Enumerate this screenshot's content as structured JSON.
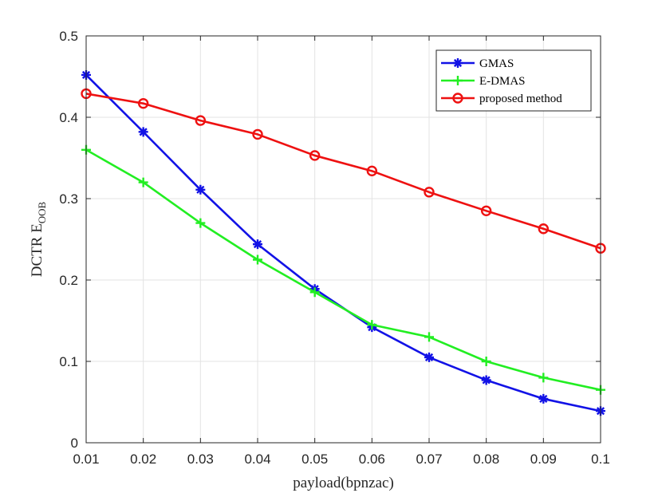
{
  "chart_data": {
    "type": "line",
    "xlabel": "payload(bpnzac)",
    "ylabel_main": "DCTR E",
    "ylabel_sub": "OOB",
    "x": [
      0.01,
      0.02,
      0.03,
      0.04,
      0.05,
      0.06,
      0.07,
      0.08,
      0.09,
      0.1
    ],
    "x_tick_labels": [
      "0.01",
      "0.02",
      "0.03",
      "0.04",
      "0.05",
      "0.06",
      "0.07",
      "0.08",
      "0.09",
      "0.1"
    ],
    "y_tick_values": [
      0,
      0.1,
      0.2,
      0.3,
      0.4,
      0.5
    ],
    "y_tick_labels": [
      "0",
      "0.1",
      "0.2",
      "0.3",
      "0.4",
      "0.5"
    ],
    "xlim": [
      0.01,
      0.1
    ],
    "ylim": [
      0,
      0.5
    ],
    "grid": true,
    "legend_position": "top-right",
    "series": [
      {
        "name": "GMAS",
        "color": "#1212e6",
        "marker": "asterisk",
        "values": [
          0.452,
          0.382,
          0.311,
          0.244,
          0.189,
          0.142,
          0.105,
          0.077,
          0.054,
          0.039
        ]
      },
      {
        "name": "E-DMAS",
        "color": "#22ee22",
        "marker": "plus",
        "values": [
          0.36,
          0.32,
          0.27,
          0.225,
          0.185,
          0.145,
          0.13,
          0.1,
          0.08,
          0.065
        ]
      },
      {
        "name": "proposed method",
        "color": "#ee1111",
        "marker": "circle",
        "values": [
          0.429,
          0.417,
          0.396,
          0.379,
          0.353,
          0.334,
          0.308,
          0.285,
          0.263,
          0.239
        ]
      }
    ]
  }
}
